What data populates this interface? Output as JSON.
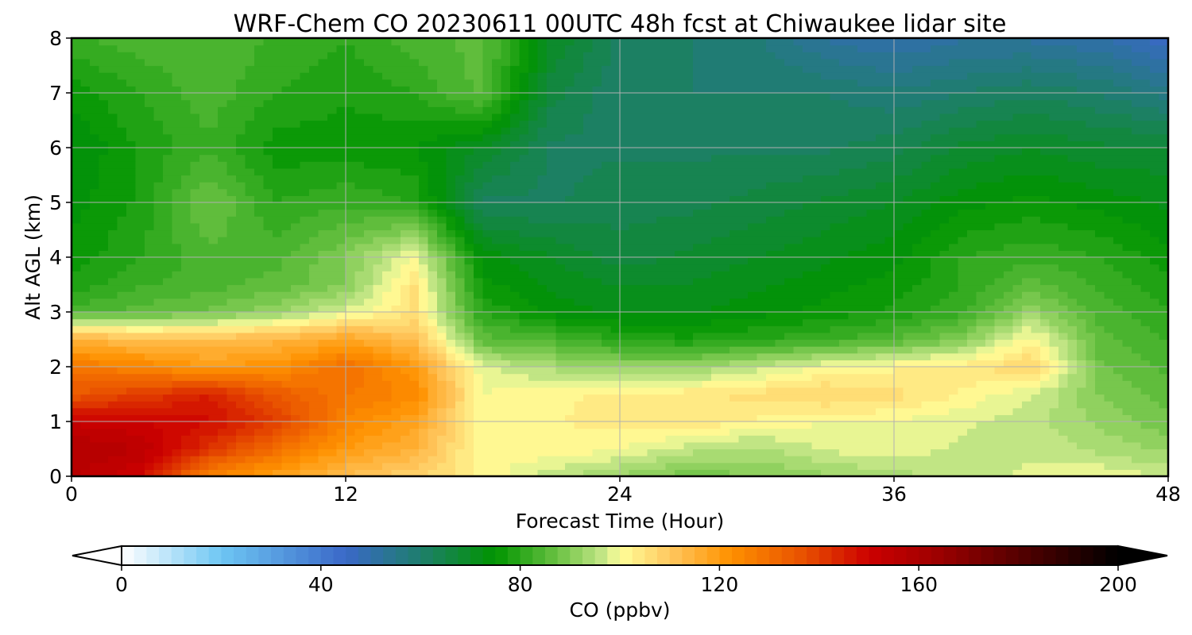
{
  "chart_data": {
    "type": "heatmap",
    "title": "WRF-Chem CO  20230611 00UTC 48h fcst at Chiwaukee lidar site",
    "xlabel": "Forecast Time (Hour)",
    "ylabel": "Alt AGL (km)",
    "xlim": [
      0,
      48
    ],
    "ylim": [
      0,
      8
    ],
    "x_ticks": [
      0,
      12,
      24,
      36,
      48
    ],
    "y_ticks": [
      0,
      1,
      2,
      3,
      4,
      5,
      6,
      7,
      8
    ],
    "x_tick_labels": [
      "0",
      "12",
      "24",
      "36",
      "48"
    ],
    "y_tick_labels": [
      "0",
      "1",
      "2",
      "3",
      "4",
      "5",
      "6",
      "7",
      "8"
    ],
    "grid": true,
    "colorbar": {
      "label": "CO  (ppbv)",
      "range": [
        0,
        200
      ],
      "ticks": [
        0,
        40,
        80,
        120,
        160,
        200
      ],
      "tick_labels": [
        "0",
        "40",
        "80",
        "120",
        "160",
        "200"
      ],
      "extend": "both",
      "stops": [
        {
          "v": 0,
          "c": "#ffffff"
        },
        {
          "v": 20,
          "c": "#6ec6f3"
        },
        {
          "v": 45,
          "c": "#3a68c8"
        },
        {
          "v": 60,
          "c": "#1e7e6c"
        },
        {
          "v": 75,
          "c": "#009400"
        },
        {
          "v": 87,
          "c": "#66c040"
        },
        {
          "v": 97,
          "c": "#c8e88a"
        },
        {
          "v": 100,
          "c": "#ffff99"
        },
        {
          "v": 110,
          "c": "#ffc860"
        },
        {
          "v": 122,
          "c": "#ff9200"
        },
        {
          "v": 137,
          "c": "#e85000"
        },
        {
          "v": 150,
          "c": "#cc0000"
        },
        {
          "v": 163,
          "c": "#a00000"
        },
        {
          "v": 185,
          "c": "#400000"
        },
        {
          "v": 200,
          "c": "#000000"
        }
      ],
      "under_color": "#ffffff",
      "over_color": "#000000"
    },
    "x": [
      0,
      3,
      6,
      9,
      12,
      15,
      18,
      21,
      24,
      27,
      30,
      33,
      36,
      39,
      42,
      45,
      48
    ],
    "y": [
      0,
      0.5,
      1,
      1.5,
      2,
      2.5,
      3,
      3.5,
      4,
      5,
      6,
      7,
      8
    ],
    "z": [
      [
        155,
        150,
        125,
        118,
        112,
        108,
        102,
        96,
        92,
        88,
        90,
        92,
        94,
        96,
        98,
        100,
        97
      ],
      [
        158,
        155,
        142,
        130,
        120,
        115,
        100,
        102,
        100,
        96,
        94,
        98,
        99,
        97,
        97,
        94,
        92
      ],
      [
        152,
        150,
        148,
        140,
        125,
        118,
        100,
        102,
        104,
        105,
        102,
        100,
        100,
        98,
        96,
        92,
        88
      ],
      [
        135,
        140,
        145,
        135,
        128,
        124,
        100,
        102,
        103,
        104,
        106,
        108,
        106,
        102,
        98,
        90,
        86
      ],
      [
        128,
        125,
        120,
        122,
        130,
        120,
        98,
        94,
        92,
        92,
        96,
        100,
        102,
        104,
        108,
        88,
        84
      ],
      [
        115,
        112,
        112,
        114,
        118,
        112,
        86,
        84,
        80,
        78,
        80,
        82,
        85,
        90,
        102,
        86,
        82
      ],
      [
        84,
        86,
        88,
        92,
        98,
        105,
        80,
        74,
        72,
        72,
        74,
        76,
        78,
        82,
        92,
        84,
        80
      ],
      [
        78,
        82,
        84,
        86,
        90,
        105,
        76,
        72,
        70,
        70,
        72,
        74,
        76,
        80,
        86,
        82,
        78
      ],
      [
        76,
        80,
        84,
        84,
        90,
        100,
        74,
        70,
        66,
        68,
        70,
        72,
        74,
        80,
        82,
        80,
        76
      ],
      [
        74,
        78,
        88,
        80,
        82,
        80,
        62,
        62,
        64,
        64,
        66,
        68,
        70,
        74,
        76,
        74,
        72
      ],
      [
        72,
        78,
        82,
        76,
        76,
        75,
        70,
        62,
        62,
        62,
        62,
        62,
        64,
        68,
        70,
        68,
        68
      ],
      [
        76,
        80,
        84,
        80,
        78,
        80,
        86,
        66,
        60,
        60,
        60,
        60,
        58,
        60,
        62,
        60,
        56
      ],
      [
        82,
        84,
        85,
        82,
        80,
        84,
        86,
        70,
        62,
        60,
        58,
        52,
        50,
        52,
        52,
        50,
        46
      ]
    ]
  }
}
